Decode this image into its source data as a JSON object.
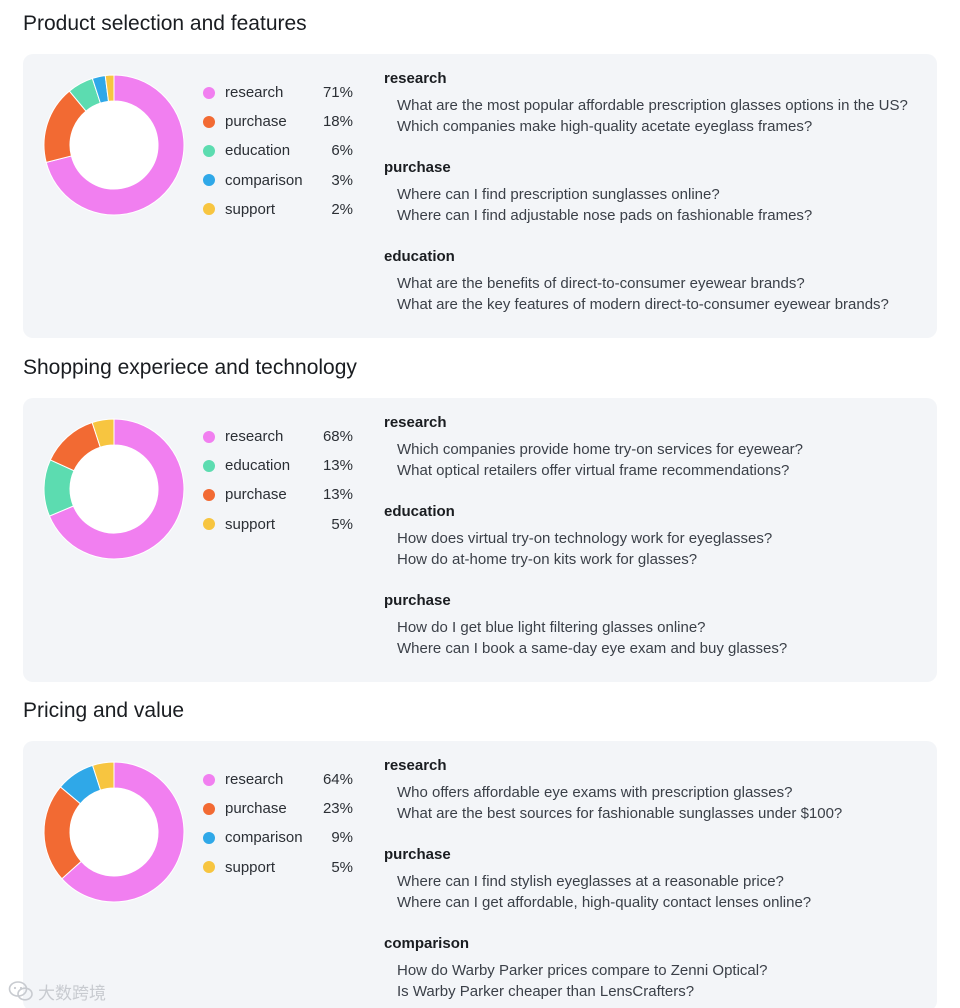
{
  "colors": {
    "research": "#f17ff0",
    "purchase": "#f26a33",
    "education": "#5cdcb0",
    "comparison": "#2fa8e8",
    "support": "#f7c540"
  },
  "sections": [
    {
      "title": "Product selection and features",
      "chart_data": {
        "type": "pie",
        "categories": [
          "research",
          "purchase",
          "education",
          "comparison",
          "support"
        ],
        "values": [
          71,
          18,
          6,
          3,
          2
        ],
        "labels": [
          "71%",
          "18%",
          "6%",
          "3%",
          "2%"
        ]
      },
      "groups": [
        {
          "title": "research",
          "queries": [
            "What are the most popular affordable prescription glasses options in the US?",
            "Which companies make high-quality acetate eyeglass frames?"
          ]
        },
        {
          "title": "purchase",
          "queries": [
            "Where can I find prescription sunglasses online?",
            "Where can I find adjustable nose pads on fashionable frames?"
          ]
        },
        {
          "title": "education",
          "queries": [
            "What are the benefits of direct-to-consumer eyewear brands?",
            "What are the key features of modern direct-to-consumer eyewear brands?"
          ]
        }
      ]
    },
    {
      "title": "Shopping experiece and technology",
      "chart_data": {
        "type": "pie",
        "categories": [
          "research",
          "education",
          "purchase",
          "support"
        ],
        "values": [
          68,
          13,
          13,
          5
        ],
        "labels": [
          "68%",
          "13%",
          "13%",
          "5%"
        ]
      },
      "groups": [
        {
          "title": "research",
          "queries": [
            "Which companies provide home try-on services for eyewear?",
            "What optical retailers offer virtual frame recommendations?"
          ]
        },
        {
          "title": "education",
          "queries": [
            "How does virtual try-on technology work for eyeglasses?",
            "How do at-home try-on kits work for glasses?"
          ]
        },
        {
          "title": "purchase",
          "queries": [
            "How do I get blue light filtering glasses online?",
            "Where can I book a same-day eye exam and buy glasses?"
          ]
        }
      ]
    },
    {
      "title": "Pricing and value",
      "chart_data": {
        "type": "pie",
        "categories": [
          "research",
          "purchase",
          "comparison",
          "support"
        ],
        "values": [
          64,
          23,
          9,
          5
        ],
        "labels": [
          "64%",
          "23%",
          "9%",
          "5%"
        ]
      },
      "groups": [
        {
          "title": "research",
          "queries": [
            "Who offers affordable eye exams with prescription glasses?",
            "What are the best sources for fashionable sunglasses under $100?"
          ]
        },
        {
          "title": "purchase",
          "queries": [
            "Where can I find stylish eyeglasses at a reasonable price?",
            "Where can I get affordable, high-quality contact lenses online?"
          ]
        },
        {
          "title": "comparison",
          "queries": [
            "How do Warby Parker prices compare to Zenni Optical?",
            "Is Warby Parker cheaper than LensCrafters?"
          ]
        }
      ]
    }
  ],
  "watermark": "大数跨境",
  "watermark_icon": "weixin-logo-icon"
}
